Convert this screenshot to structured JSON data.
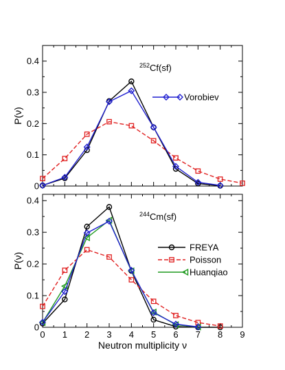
{
  "chart_data": [
    {
      "type": "line",
      "title": "",
      "annotation": {
        "sup": "252",
        "text": "Cf(sf)"
      },
      "xlabel": "",
      "ylabel": "P(ν)",
      "xlim": [
        0,
        9
      ],
      "ylim": [
        0,
        0.45
      ],
      "xticks": [
        0,
        1,
        2,
        3,
        4,
        5,
        6,
        7,
        8,
        9
      ],
      "xtick_labels_shown": false,
      "yticks": [
        0,
        0.1,
        0.2,
        0.3,
        0.4
      ],
      "ytick_labels": [
        "0",
        "0.1",
        "0.2",
        "0.3",
        "0.4"
      ],
      "grid": false,
      "legend_placement": "right",
      "series": [
        {
          "key": "freya",
          "name": "",
          "color": "#000000",
          "dash": "solid",
          "marker": "circle",
          "x": [
            0,
            1,
            2,
            3,
            4,
            5,
            6,
            7,
            8
          ],
          "values": [
            0.002,
            0.025,
            0.115,
            0.272,
            0.335,
            0.188,
            0.055,
            0.008,
            0.001
          ]
        },
        {
          "key": "poisson",
          "name": "",
          "color": "#e02020",
          "dash": "dashed",
          "marker": "square",
          "x": [
            0,
            1,
            2,
            3,
            4,
            5,
            6,
            7,
            8,
            9
          ],
          "values": [
            0.024,
            0.088,
            0.166,
            0.206,
            0.193,
            0.145,
            0.09,
            0.048,
            0.022,
            0.009
          ]
        },
        {
          "key": "vorobiev",
          "name": "Vorobiev",
          "color": "#1f1fd0",
          "dash": "solid",
          "marker": "diamond",
          "x": [
            0,
            1,
            2,
            3,
            4,
            5,
            6,
            7,
            8
          ],
          "values": [
            0.002,
            0.028,
            0.125,
            0.27,
            0.305,
            0.188,
            0.063,
            0.012,
            0.002
          ]
        }
      ],
      "legend": [
        "vorobiev"
      ]
    },
    {
      "type": "line",
      "title": "",
      "annotation": {
        "sup": "244",
        "text": "Cm(sf)"
      },
      "xlabel": "Neutron multiplicity ν",
      "ylabel": "P(ν)",
      "xlim": [
        0,
        9
      ],
      "ylim": [
        0,
        0.42
      ],
      "xticks": [
        0,
        1,
        2,
        3,
        4,
        5,
        6,
        7,
        8,
        9
      ],
      "xtick_labels": [
        "0",
        "1",
        "2",
        "3",
        "4",
        "5",
        "6",
        "7",
        "8",
        "9"
      ],
      "yticks": [
        0,
        0.1,
        0.2,
        0.3,
        0.4
      ],
      "ytick_labels": [
        "0",
        "0.1",
        "0.2",
        "0.3",
        "0.4"
      ],
      "grid": false,
      "legend_placement": "right",
      "series": [
        {
          "key": "freya",
          "name": "FREYA",
          "color": "#000000",
          "dash": "solid",
          "marker": "circle",
          "x": [
            0,
            1,
            2,
            3,
            4,
            5,
            6,
            7,
            8
          ],
          "values": [
            0.012,
            0.088,
            0.318,
            0.38,
            0.178,
            0.024,
            0.002,
            0.0,
            0.0
          ]
        },
        {
          "key": "poisson",
          "name": "Poisson",
          "color": "#e02020",
          "dash": "dashed",
          "marker": "square",
          "x": [
            0,
            1,
            2,
            3,
            4,
            5,
            6,
            7,
            8
          ],
          "values": [
            0.066,
            0.18,
            0.245,
            0.222,
            0.15,
            0.082,
            0.037,
            0.015,
            0.004
          ]
        },
        {
          "key": "huanqiao",
          "name": "Huanqiao",
          "color": "#1f9a1f",
          "dash": "solid",
          "marker": "triangle-left",
          "x": [
            0,
            1,
            2,
            3,
            4,
            5,
            6,
            7
          ],
          "values": [
            0.015,
            0.13,
            0.283,
            0.338,
            0.178,
            0.048,
            0.008,
            0.001
          ]
        },
        {
          "key": "vorobiev",
          "name": "",
          "color": "#1f1fd0",
          "dash": "solid",
          "marker": "diamond",
          "x": [
            0,
            1,
            2,
            3,
            4,
            5,
            6,
            7
          ],
          "values": [
            0.016,
            0.113,
            0.298,
            0.335,
            0.18,
            0.046,
            0.01,
            0.001
          ]
        }
      ],
      "legend": [
        "freya",
        "poisson",
        "huanqiao"
      ]
    }
  ]
}
